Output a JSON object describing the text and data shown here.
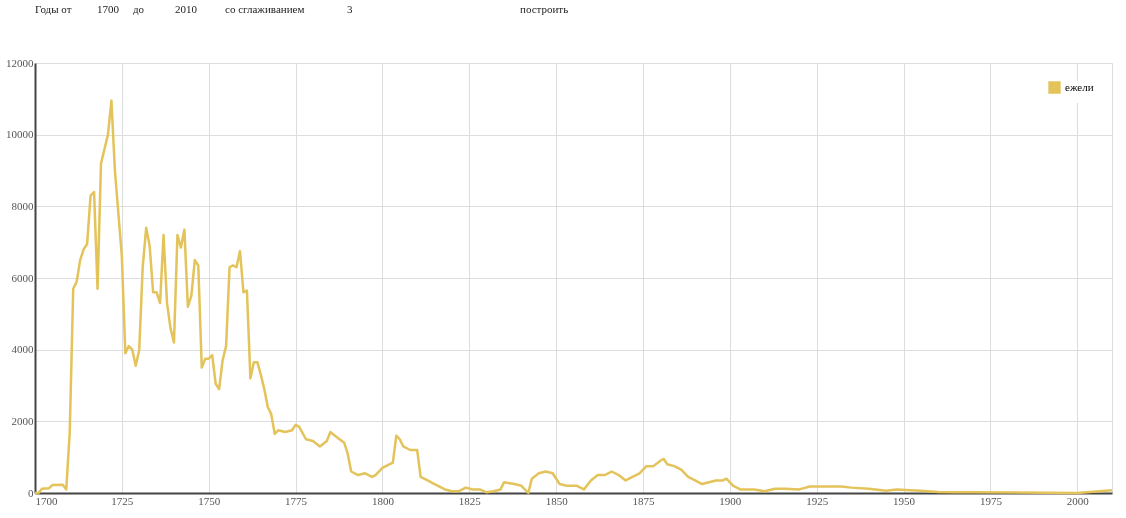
{
  "chart_data": {
    "type": "line",
    "annotations": [
      "Годы от",
      "1700",
      "до",
      "2010",
      "со сглаживанием",
      "3",
      "построить"
    ],
    "x": [
      1700,
      1701,
      1702,
      1704,
      1705,
      1708,
      1709,
      1710,
      1711,
      1712,
      1713,
      1714,
      1715,
      1716,
      1717,
      1718,
      1719,
      1720,
      1721,
      1722,
      1723,
      1724,
      1725,
      1726,
      1727,
      1728,
      1729,
      1730,
      1731,
      1732,
      1733,
      1734,
      1735,
      1736,
      1737,
      1738,
      1739,
      1740,
      1741,
      1742,
      1743,
      1744,
      1745,
      1746,
      1747,
      1748,
      1749,
      1750,
      1751,
      1752,
      1753,
      1754,
      1755,
      1756,
      1757,
      1758,
      1759,
      1760,
      1761,
      1762,
      1763,
      1764,
      1765,
      1766,
      1767,
      1768,
      1769,
      1770,
      1772,
      1774,
      1775,
      1776,
      1778,
      1780,
      1782,
      1784,
      1785,
      1787,
      1789,
      1790,
      1791,
      1793,
      1795,
      1797,
      1798,
      1800,
      1802,
      1803,
      1804,
      1805,
      1806,
      1808,
      1810,
      1811,
      1813,
      1815,
      1818,
      1820,
      1822,
      1824,
      1826,
      1828,
      1830,
      1832,
      1834,
      1835,
      1838,
      1840,
      1842,
      1843,
      1845,
      1847,
      1849,
      1851,
      1853,
      1856,
      1858,
      1860,
      1862,
      1864,
      1866,
      1868,
      1870,
      1872,
      1874,
      1876,
      1878,
      1880,
      1881,
      1882,
      1884,
      1886,
      1888,
      1890,
      1892,
      1894,
      1896,
      1898,
      1899,
      1901,
      1903,
      1907,
      1910,
      1913,
      1916,
      1920,
      1923,
      1927,
      1932,
      1935,
      1940,
      1945,
      1948,
      1952,
      1955,
      1960,
      1965,
      1970,
      2000,
      2010
    ],
    "series": [
      {
        "name": "ежели",
        "color": "#e3c35a",
        "values": [
          0,
          0,
          120,
          130,
          220,
          230,
          100,
          1700,
          5700,
          5900,
          6500,
          6800,
          6950,
          8300,
          8400,
          5700,
          9200,
          9600,
          10000,
          10950,
          9000,
          7800,
          6600,
          3900,
          4100,
          4000,
          3550,
          4000,
          6300,
          7400,
          6900,
          5600,
          5600,
          5300,
          7200,
          5300,
          4600,
          4200,
          7200,
          6850,
          7350,
          5200,
          5500,
          6500,
          6350,
          3500,
          3750,
          3750,
          3850,
          3050,
          2900,
          3700,
          4100,
          6300,
          6350,
          6300,
          6750,
          5600,
          5650,
          3200,
          3650,
          3650,
          3300,
          2900,
          2400,
          2200,
          1650,
          1750,
          1700,
          1750,
          1900,
          1850,
          1500,
          1450,
          1300,
          1450,
          1700,
          1550,
          1400,
          1100,
          600,
          500,
          550,
          450,
          500,
          700,
          800,
          850,
          1600,
          1500,
          1300,
          1200,
          1200,
          450,
          350,
          250,
          100,
          50,
          50,
          150,
          100,
          100,
          20,
          50,
          100,
          300,
          250,
          200,
          0,
          400,
          550,
          600,
          550,
          250,
          200,
          200,
          100,
          350,
          500,
          500,
          600,
          500,
          350,
          450,
          550,
          750,
          750,
          900,
          950,
          800,
          750,
          650,
          450,
          350,
          250,
          300,
          350,
          350,
          400,
          200,
          100,
          100,
          50,
          120,
          120,
          100,
          180,
          180,
          180,
          150,
          120,
          60,
          100,
          80,
          60,
          30,
          20,
          20,
          0,
          80
        ]
      }
    ],
    "xlim": [
      1700,
      2010
    ],
    "xticks": [
      1700,
      1725,
      1750,
      1775,
      1800,
      1825,
      1850,
      1875,
      1900,
      1925,
      1950,
      1975,
      2000
    ],
    "ylim": [
      0,
      12000
    ],
    "yticks": [
      0,
      2000,
      4000,
      6000,
      8000,
      10000,
      12000
    ],
    "grid": true,
    "legend": "top right"
  }
}
